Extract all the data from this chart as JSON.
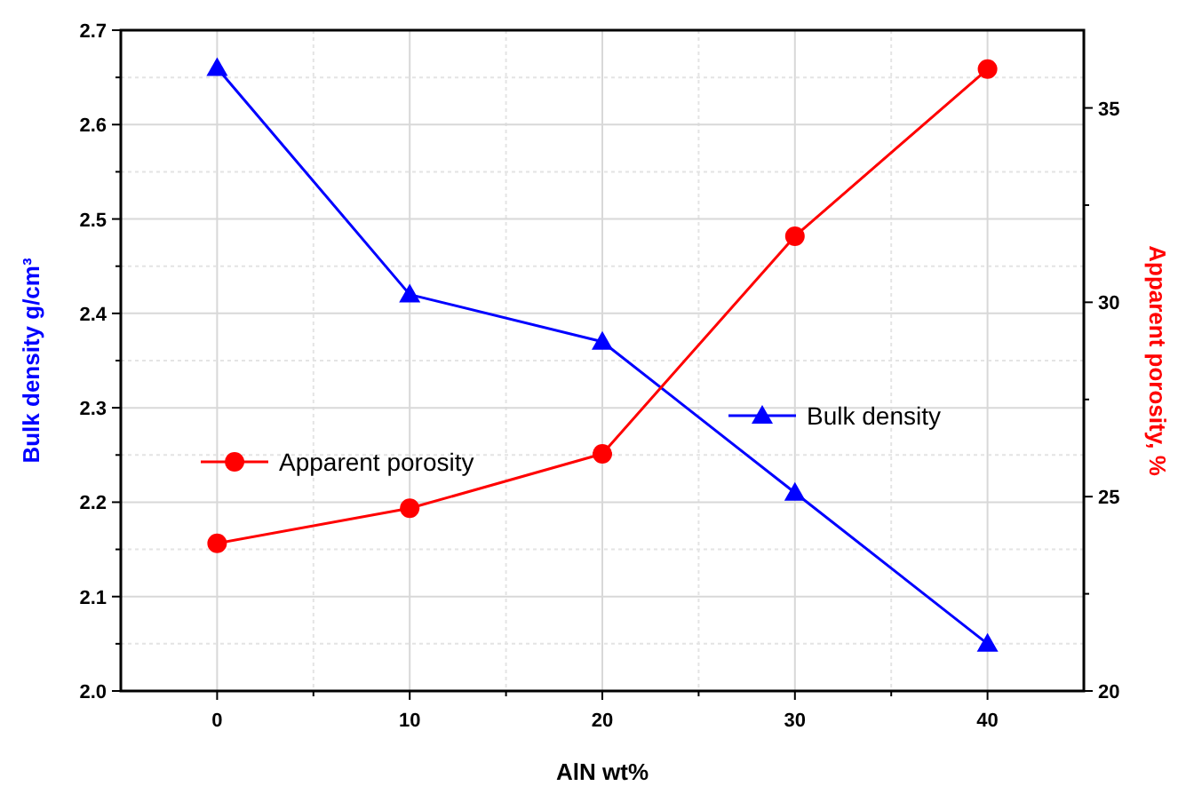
{
  "chart_data": {
    "type": "line",
    "xlabel": "AlN wt%",
    "ylabel": "Bulk density g/cm³",
    "y2label": "Apparent porosity, %",
    "x": [
      0,
      10,
      20,
      30,
      40
    ],
    "xlim": [
      -5,
      45
    ],
    "xticks": [
      0,
      10,
      20,
      30,
      40
    ],
    "ylim": [
      2.0,
      2.7
    ],
    "yticks": [
      {
        "value": 2.0,
        "label": "2.0"
      },
      2.1,
      2.2,
      2.3,
      2.4,
      2.5,
      2.6,
      2.7
    ],
    "y2lim": [
      20,
      37
    ],
    "y2ticks": [
      20,
      25,
      30,
      35
    ],
    "grid": true,
    "legend": "center",
    "line_style": "solid",
    "series": [
      {
        "name": "Bulk density",
        "color": "#0000ff",
        "marker": "triangle",
        "values": [
          2.66,
          2.42,
          2.37,
          2.21,
          2.05
        ]
      },
      {
        "name": "Apparent porosity",
        "color": "#ff0000",
        "marker": "circle",
        "axis": "y2",
        "values": [
          23.8,
          24.7,
          26.1,
          31.7,
          36.0
        ]
      }
    ]
  }
}
